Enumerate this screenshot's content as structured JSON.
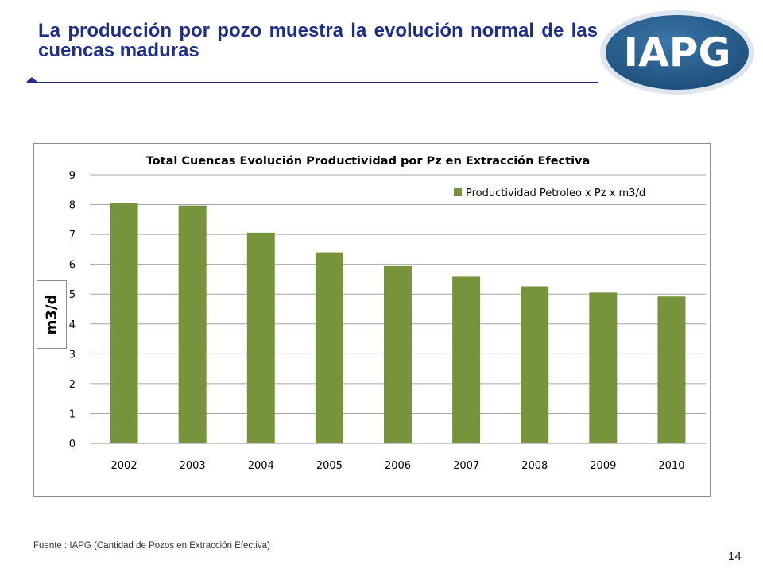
{
  "slide": {
    "title": "La producción por pozo muestra la evolución normal de las cuencas maduras",
    "logo_text": "IAPG",
    "source": "Fuente :  IAPG (Cantidad de Pozos en Extracción Efectiva)",
    "page_number": "14"
  },
  "colors": {
    "title": "#1f2f86",
    "bar": "#77933c",
    "logo_fill": "#2b5f8c",
    "logo_ring": "#c9d3dd"
  },
  "chart_data": {
    "type": "bar",
    "title": "Total Cuencas Evolución Productividad por Pz en Extracción Efectiva",
    "ylabel": "m3/d",
    "xlabel": "",
    "categories": [
      "2002",
      "2003",
      "2004",
      "2005",
      "2006",
      "2007",
      "2008",
      "2009",
      "2010"
    ],
    "series": [
      {
        "name": "Productividad Petroleo  x Pz x m3/d",
        "values": [
          8.05,
          7.97,
          7.06,
          6.4,
          5.94,
          5.58,
          5.26,
          5.05,
          4.92
        ]
      }
    ],
    "ylim": [
      0,
      9
    ],
    "yticks": [
      "0",
      "1",
      "2",
      "3",
      "4",
      "5",
      "6",
      "7",
      "8",
      "9"
    ],
    "grid": true,
    "legend": "top-right"
  }
}
